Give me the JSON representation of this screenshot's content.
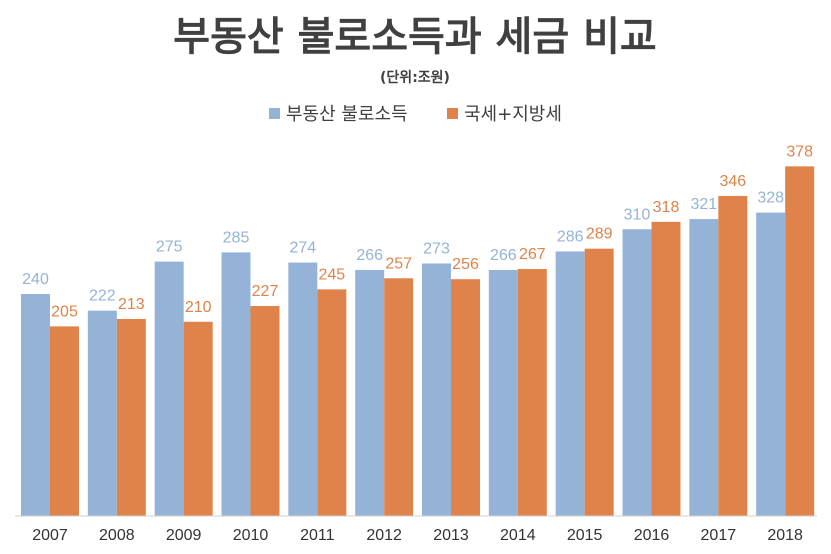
{
  "chart_data": {
    "type": "bar",
    "title": "부동산 불로소득과 세금 비교",
    "subtitle": "(단위:조원)",
    "categories": [
      "2007",
      "2008",
      "2009",
      "2010",
      "2011",
      "2012",
      "2013",
      "2014",
      "2015",
      "2016",
      "2017",
      "2018"
    ],
    "series": [
      {
        "name": "부동산 불로소득",
        "color": "#95B3D7",
        "values": [
          240,
          222,
          275,
          285,
          274,
          266,
          273,
          266,
          286,
          310,
          321,
          328
        ]
      },
      {
        "name": "국세+지방세",
        "color": "#E0834A",
        "values": [
          205,
          213,
          210,
          227,
          245,
          257,
          256,
          267,
          289,
          318,
          346,
          378
        ]
      }
    ],
    "ylim": [
      0,
      400
    ],
    "grid": false,
    "legend_position": "top-center",
    "data_labels": true
  }
}
